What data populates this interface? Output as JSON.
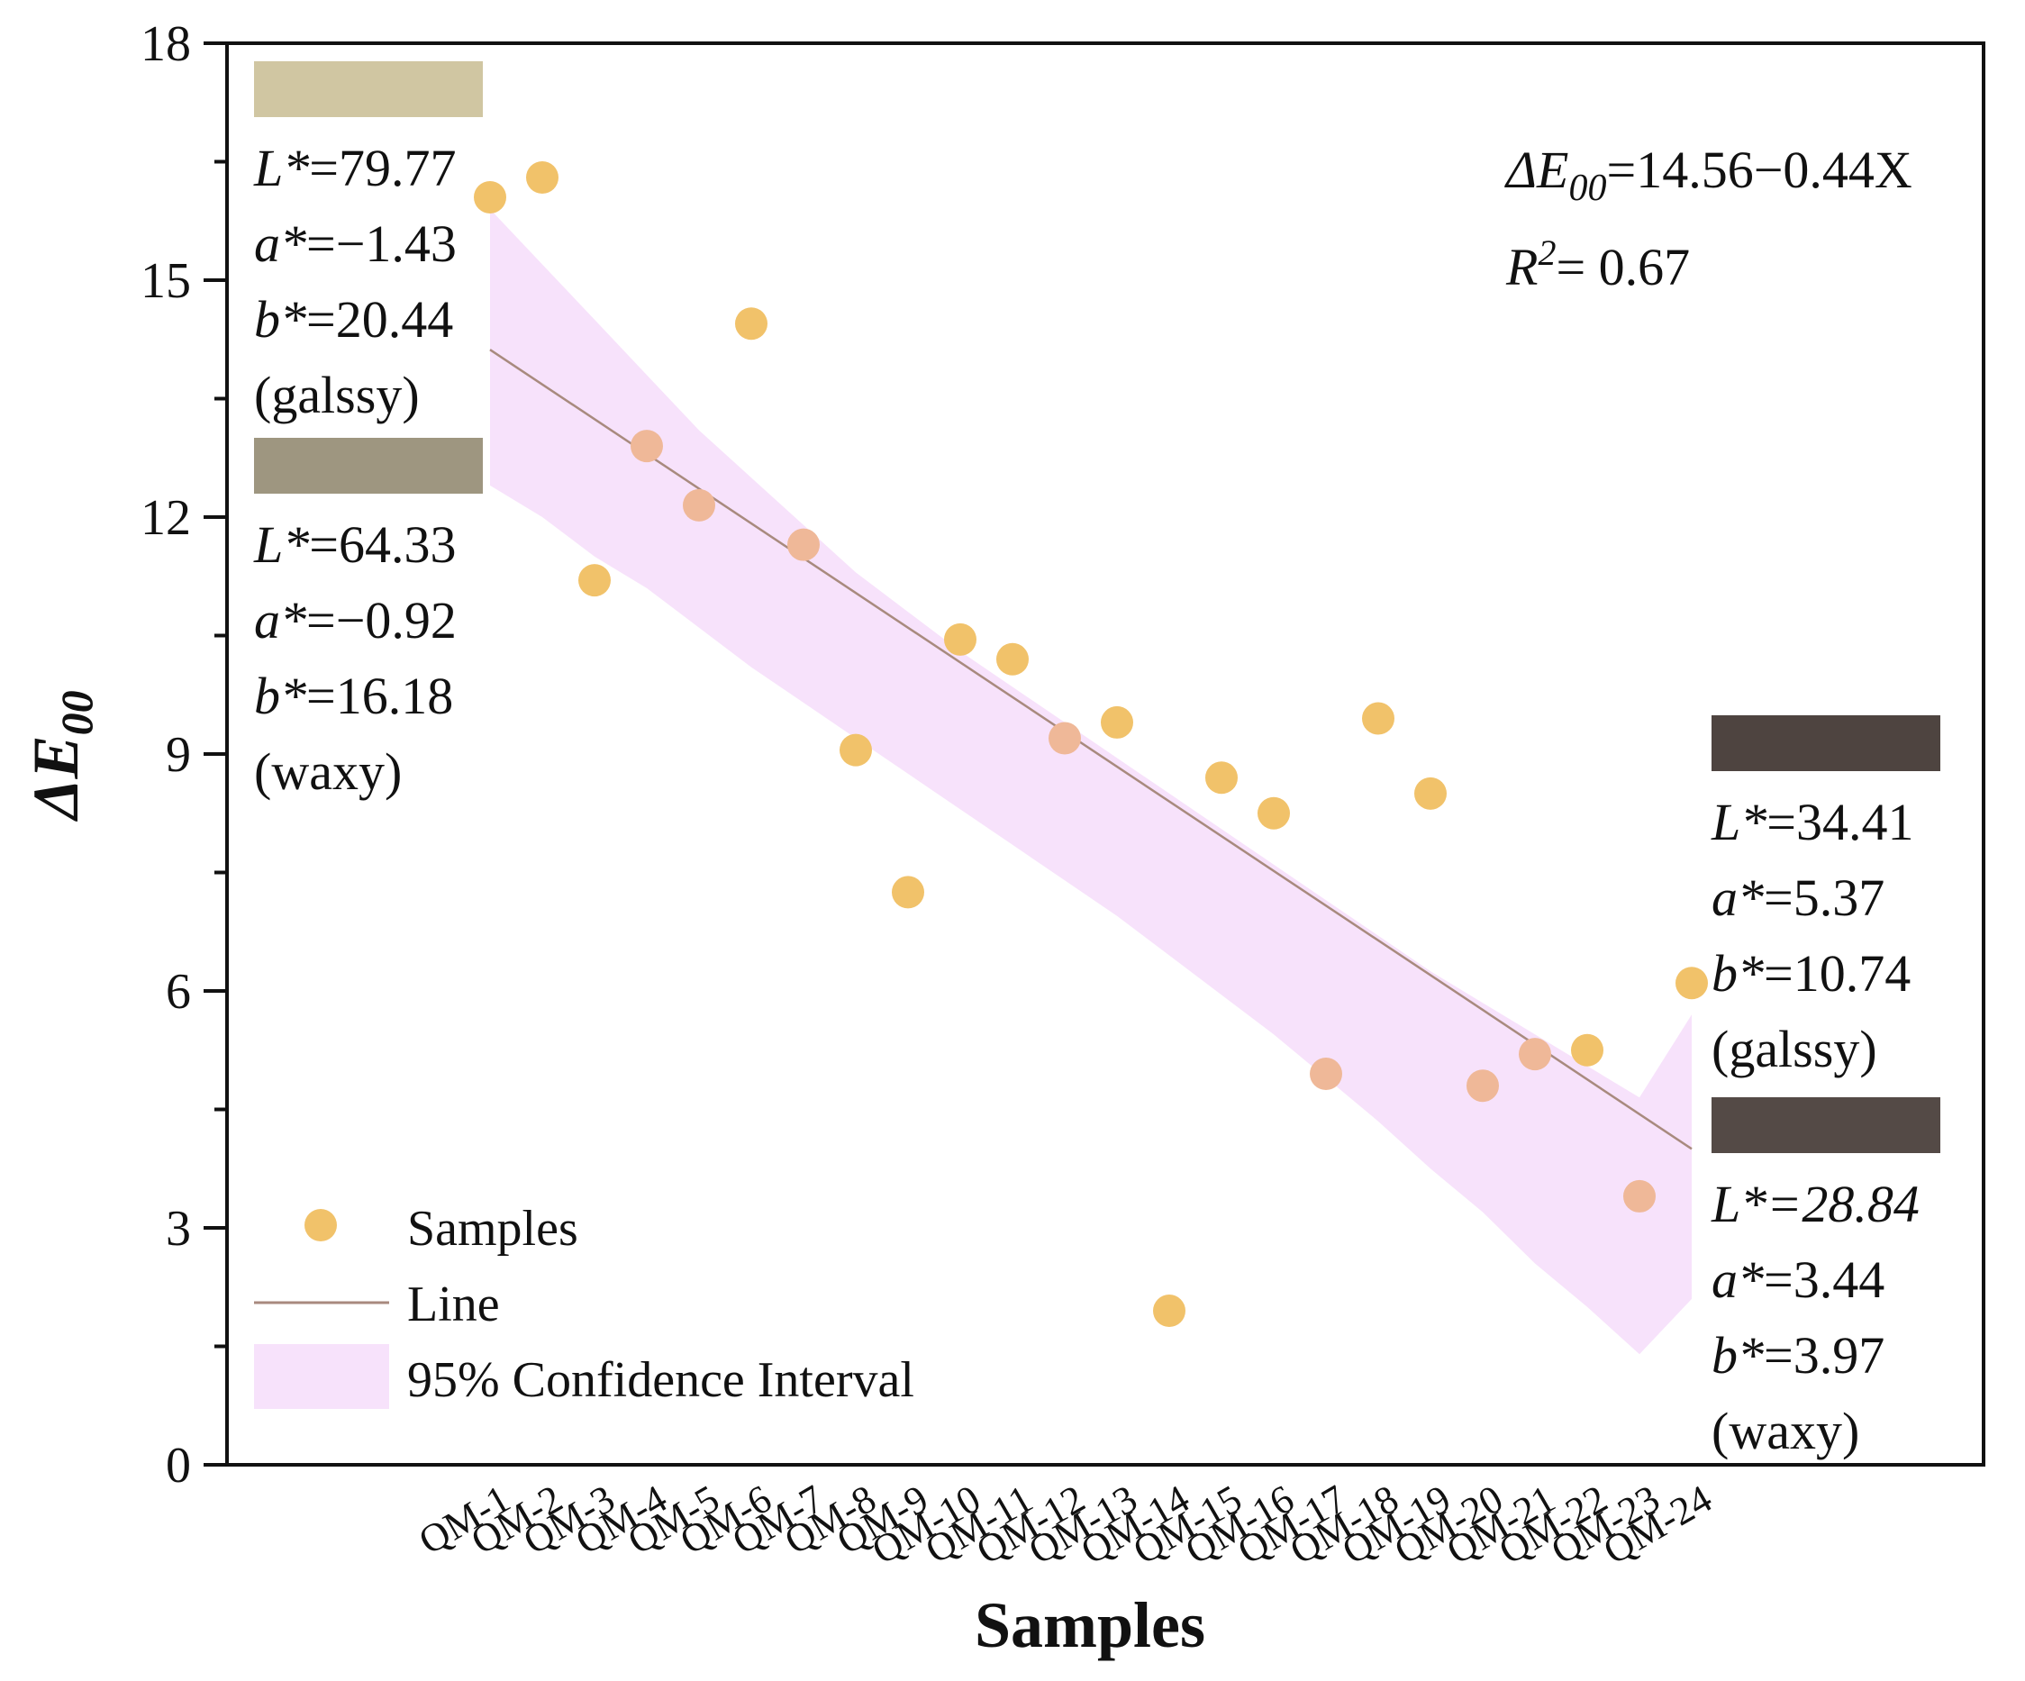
{
  "chart_data": {
    "type": "scatter",
    "title": "",
    "xlabel": "Samples",
    "ylabel_main": "ΔE",
    "ylabel_sub": "00",
    "ylim": [
      0,
      18
    ],
    "yticks": [
      0,
      3,
      6,
      9,
      12,
      15,
      18
    ],
    "yticks_labels": [
      "0",
      "3",
      "6",
      "9",
      "12",
      "15",
      "18"
    ],
    "categories": [
      "QM-1",
      "QM-2",
      "QM-3",
      "QM-4",
      "QM-5",
      "QM-6",
      "QM-7",
      "QM-8",
      "QM-9",
      "QM-10",
      "QM-11",
      "QM-12",
      "QM-13",
      "QM-14",
      "QM-15",
      "QM-16",
      "QM-17",
      "QM-18",
      "QM-19",
      "QM-20",
      "QM-21",
      "QM-22",
      "QM-23",
      "QM-24"
    ],
    "values": [
      16.05,
      16.3,
      11.2,
      12.9,
      12.15,
      14.45,
      11.65,
      9.05,
      7.25,
      10.45,
      10.2,
      9.2,
      9.4,
      1.95,
      8.7,
      8.25,
      4.95,
      9.45,
      8.5,
      4.8,
      5.2,
      5.25,
      3.4,
      6.1
    ],
    "fit": {
      "intercept": 14.56,
      "slope": -0.44
    },
    "confidence_interval": {
      "upper": [
        15.9,
        15.2,
        14.5,
        13.8,
        13.1,
        12.5,
        11.9,
        11.3,
        10.8,
        10.3,
        9.85,
        9.4,
        8.95,
        8.5,
        8.05,
        7.6,
        7.15,
        6.7,
        6.25,
        5.85,
        5.45,
        5.05,
        4.65,
        5.7
      ],
      "lower": [
        12.4,
        12.0,
        11.5,
        11.1,
        10.6,
        10.1,
        9.65,
        9.2,
        8.75,
        8.3,
        7.85,
        7.4,
        6.95,
        6.45,
        5.95,
        5.45,
        4.9,
        4.35,
        3.75,
        3.2,
        2.55,
        2.0,
        1.4,
        2.1
      ]
    },
    "point_color": "#f1c26a",
    "point_color_in_band": "#efb898",
    "line_color": "#a88a7e",
    "band_color": "#f7e2fb",
    "equation": {
      "prefix": "ΔE",
      "sub": "00",
      "rest": "=14.56−0.44X"
    },
    "r2": {
      "prefix": "R",
      "sup": "2",
      "rest": "= 0.67"
    },
    "legend": {
      "position": "bottom-left",
      "entries": [
        "Samples",
        "Line",
        "95% Confidence Interval"
      ]
    },
    "annotations": [
      {
        "swatch": "#d0c6a2",
        "lines": [
          [
            "L*",
            "=79.77"
          ],
          [
            "a*",
            "=−1.43"
          ],
          [
            "b*",
            "=20.44"
          ],
          [
            "",
            "(galssy)"
          ]
        ]
      },
      {
        "swatch": "#9e9680",
        "lines": [
          [
            "L*",
            "=64.33"
          ],
          [
            "a*",
            "=−0.92"
          ],
          [
            "b*",
            "=16.18"
          ],
          [
            "",
            "(waxy)"
          ]
        ]
      },
      {
        "swatch": "#4e4440",
        "lines": [
          [
            "L*",
            "=34.41"
          ],
          [
            "a*",
            "=5.37"
          ],
          [
            "b*",
            "=10.74"
          ],
          [
            "",
            "(galssy)"
          ]
        ]
      },
      {
        "swatch": "#544a46",
        "lines": [
          [
            "L*",
            "=28.84"
          ],
          [
            "a*",
            "=3.44"
          ],
          [
            "b*",
            "=3.97"
          ],
          [
            "",
            "(waxy)"
          ]
        ]
      }
    ]
  }
}
